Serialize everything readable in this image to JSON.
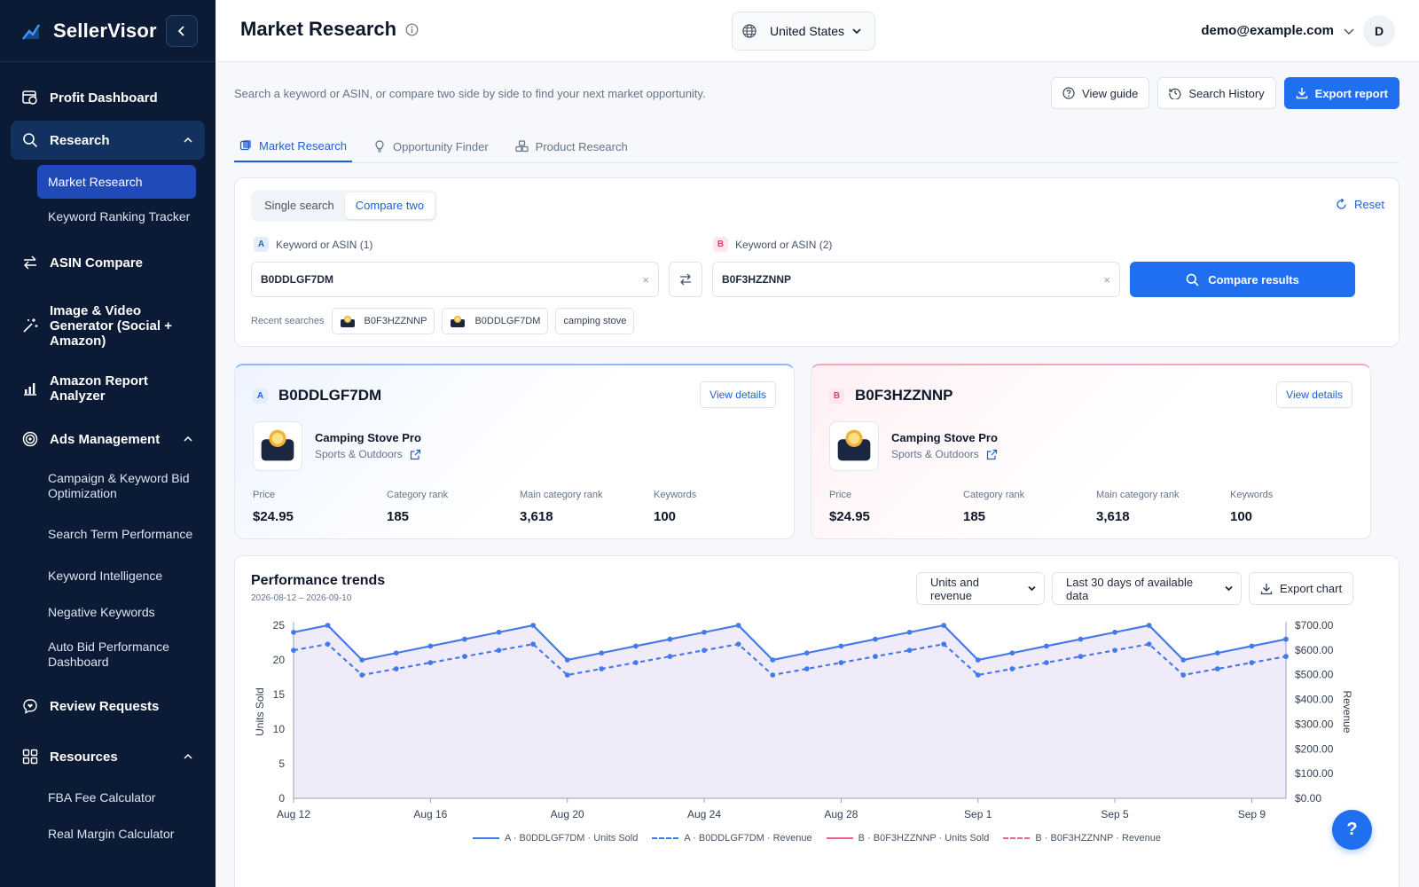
{
  "app": {
    "name": "SellerVisor"
  },
  "sidebar": {
    "items": [
      {
        "label": "Profit Dashboard",
        "icon": "dashboard-icon"
      },
      {
        "label": "Research",
        "icon": "search-icon",
        "expanded": true
      },
      {
        "label": "ASIN Compare",
        "icon": "swap-icon"
      },
      {
        "label": "Image & Video Generator (Social + Amazon)",
        "icon": "magic-wand-icon"
      },
      {
        "label": "Amazon Report Analyzer",
        "icon": "bar-chart-icon"
      },
      {
        "label": "Ads Management",
        "icon": "target-icon",
        "expanded": true
      },
      {
        "label": "Review Requests",
        "icon": "review-icon"
      },
      {
        "label": "Resources",
        "icon": "grid-icon",
        "expanded": true
      }
    ],
    "research_sub": [
      "Market Research",
      "Keyword Ranking Tracker"
    ],
    "ads_sub": [
      "Campaign & Keyword Bid Optimization",
      "Search Term Performance",
      "Keyword Intelligence",
      "Negative Keywords",
      "Auto Bid Performance Dashboard"
    ],
    "resources_sub": [
      "FBA Fee Calculator",
      "Real Margin Calculator"
    ]
  },
  "header": {
    "title": "Market Research",
    "country": "United States",
    "user_email": "demo@example.com",
    "avatar_initial": "D"
  },
  "main": {
    "subtitle": "Search a keyword or ASIN, or compare two side by side to find your next market opportunity.",
    "actions": {
      "guide": "View guide",
      "history": "Search History",
      "export": "Export report"
    },
    "tabs": [
      "Market Research",
      "Opportunity Finder",
      "Product Research"
    ]
  },
  "search": {
    "mode_single": "Single search",
    "mode_compare": "Compare two",
    "reset": "Reset",
    "label_a": "Keyword or ASIN (1)",
    "label_b": "Keyword or ASIN (2)",
    "badge_a": "A",
    "badge_b": "B",
    "value_a": "B0DDLGF7DM",
    "value_b": "B0F3HZZNNP",
    "compare_button": "Compare results",
    "recent_label": "Recent searches",
    "recent": [
      "B0F3HZZNNP",
      "B0DDLGF7DM",
      "camping stove"
    ]
  },
  "products": [
    {
      "badge": "A",
      "asin": "B0DDLGF7DM",
      "view": "View details",
      "name": "Camping Stove Pro",
      "category": "Sports & Outdoors",
      "metrics": [
        {
          "label": "Price",
          "value": "$24.95"
        },
        {
          "label": "Category rank",
          "value": "185"
        },
        {
          "label": "Main category rank",
          "value": "3,618"
        },
        {
          "label": "Keywords",
          "value": "100"
        }
      ]
    },
    {
      "badge": "B",
      "asin": "B0F3HZZNNP",
      "view": "View details",
      "name": "Camping Stove Pro",
      "category": "Sports & Outdoors",
      "metrics": [
        {
          "label": "Price",
          "value": "$24.95"
        },
        {
          "label": "Category rank",
          "value": "185"
        },
        {
          "label": "Main category rank",
          "value": "3,618"
        },
        {
          "label": "Keywords",
          "value": "100"
        }
      ]
    }
  ],
  "trends": {
    "title": "Performance trends",
    "range": "2026-08-12 – 2026-09-10",
    "metric_select": "Units and revenue",
    "period_select": "Last 30 days of available data",
    "export": "Export chart"
  },
  "colors": {
    "primary": "#1f6ff0",
    "sidebar": "#0b1a35",
    "series_a": "#3b7cf0",
    "series_b": "#e8628c",
    "area": "#ede9f7"
  },
  "chart_data": {
    "type": "line",
    "x": [
      "Aug 12",
      "Aug 13",
      "Aug 14",
      "Aug 15",
      "Aug 16",
      "Aug 17",
      "Aug 18",
      "Aug 19",
      "Aug 20",
      "Aug 21",
      "Aug 22",
      "Aug 23",
      "Aug 24",
      "Aug 25",
      "Aug 26",
      "Aug 27",
      "Aug 28",
      "Aug 29",
      "Aug 30",
      "Aug 31",
      "Sep 1",
      "Sep 2",
      "Sep 3",
      "Sep 4",
      "Sep 5",
      "Sep 6",
      "Sep 7",
      "Sep 8",
      "Sep 9",
      "Sep 10"
    ],
    "x_tick_labels": [
      "Aug 12",
      "Aug 16",
      "Aug 20",
      "Aug 24",
      "Aug 28",
      "Sep 1",
      "Sep 5",
      "Sep 9"
    ],
    "ylabel": "Units Sold",
    "y2label": "Revenue",
    "ylim": [
      0,
      25
    ],
    "y_ticks": [
      0,
      5,
      10,
      15,
      20,
      25
    ],
    "y2lim": [
      0,
      700
    ],
    "y2_ticks": [
      "$0.00",
      "$100.00",
      "$200.00",
      "$300.00",
      "$400.00",
      "$500.00",
      "$600.00",
      "$700.00"
    ],
    "series": [
      {
        "name": "A · B0DDLGF7DM · Units Sold",
        "axis": "left",
        "style": "solid",
        "color": "#3b7cf0",
        "values": [
          24,
          25,
          20,
          21,
          22,
          23,
          24,
          25,
          20,
          21,
          22,
          23,
          24,
          25,
          20,
          21,
          22,
          23,
          24,
          25,
          20,
          21,
          22,
          23,
          24,
          25,
          20,
          21,
          22,
          23
        ]
      },
      {
        "name": "A · B0DDLGF7DM · Revenue",
        "axis": "right",
        "style": "dashed",
        "color": "#3b7cf0",
        "values": [
          599,
          624,
          499,
          524,
          549,
          574,
          599,
          624,
          499,
          524,
          549,
          574,
          599,
          624,
          499,
          524,
          549,
          574,
          599,
          624,
          499,
          524,
          549,
          574,
          599,
          624,
          499,
          524,
          549,
          574
        ]
      },
      {
        "name": "B · B0F3HZZNNP · Units Sold",
        "axis": "left",
        "style": "solid",
        "color": "#e8628c",
        "values": [
          24,
          25,
          20,
          21,
          22,
          23,
          24,
          25,
          20,
          21,
          22,
          23,
          24,
          25,
          20,
          21,
          22,
          23,
          24,
          25,
          20,
          21,
          22,
          23,
          24,
          25,
          20,
          21,
          22,
          23
        ]
      },
      {
        "name": "B · B0F3HZZNNP · Revenue",
        "axis": "right",
        "style": "dashed",
        "color": "#e8628c",
        "values": [
          599,
          624,
          499,
          524,
          549,
          574,
          599,
          624,
          499,
          524,
          549,
          574,
          599,
          624,
          499,
          524,
          549,
          574,
          599,
          624,
          499,
          524,
          549,
          574,
          599,
          624,
          499,
          524,
          549,
          574
        ]
      }
    ],
    "legend_position": "bottom"
  }
}
